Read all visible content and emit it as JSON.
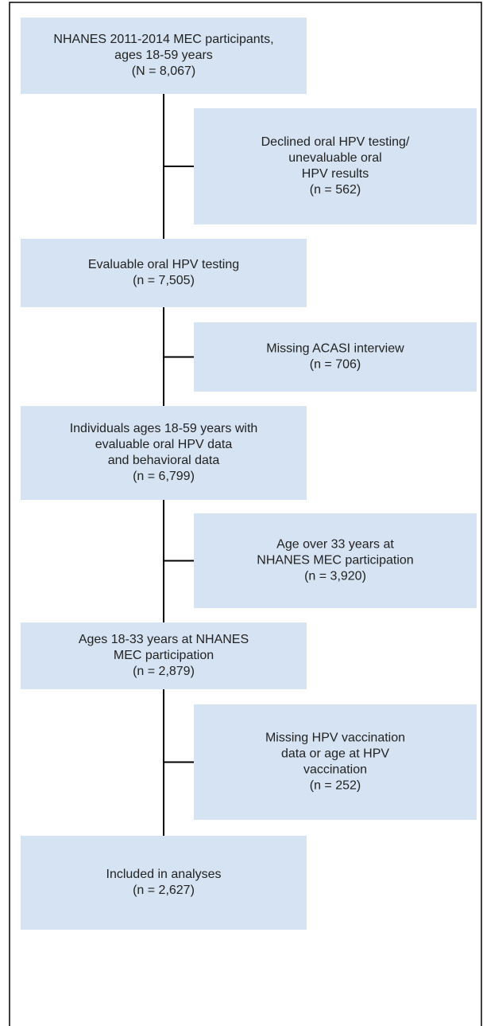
{
  "steps": [
    {
      "lines": [
        "NHANES 2011-2014 MEC participants,",
        "ages 18-59 years",
        "(N = 8,067)"
      ]
    },
    {
      "lines": [
        "Evaluable oral HPV testing",
        "(n = 7,505)"
      ]
    },
    {
      "lines": [
        "Individuals ages 18-59 years with",
        "evaluable oral HPV data",
        "and behavioral data",
        "(n = 6,799)"
      ]
    },
    {
      "lines": [
        "Ages 18-33 years at NHANES",
        "MEC participation",
        "(n = 2,879)"
      ]
    },
    {
      "lines": [
        "Included in analyses",
        "(n = 2,627)"
      ]
    }
  ],
  "exclusions": [
    {
      "lines": [
        "Declined oral HPV testing/",
        "unevaluable oral",
        "HPV results",
        "(n = 562)"
      ]
    },
    {
      "lines": [
        "Missing ACASI interview",
        "(n = 706)"
      ]
    },
    {
      "lines": [
        "Age over 33 years at",
        "NHANES MEC participation",
        "(n = 3,920)"
      ]
    },
    {
      "lines": [
        "Missing HPV vaccination",
        "data or age at HPV",
        "vaccination",
        "(n = 252)"
      ]
    }
  ]
}
